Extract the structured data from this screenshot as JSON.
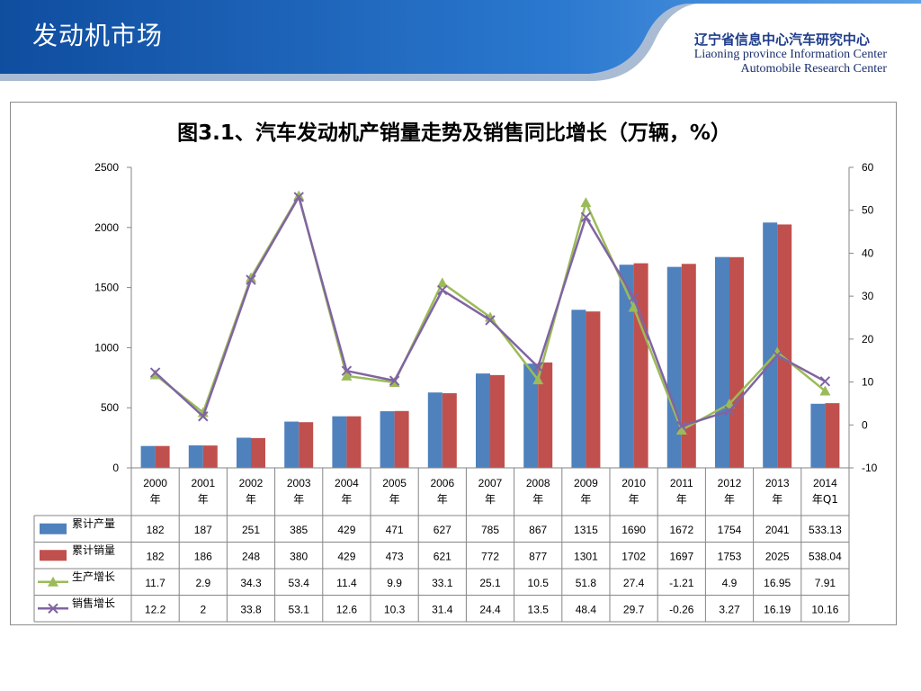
{
  "slide": {
    "title": "发动机市场",
    "org_cn": "辽宁省信息中心汽车研究中心",
    "org_en_line1": "Liaoning province Information Center",
    "org_en_line2": "Automobile Research Center"
  },
  "colors": {
    "header_blue": "#1d5fb5",
    "bar_production": "#4f81bd",
    "bar_sales": "#c0504d",
    "line_production_growth": "#9bbb59",
    "line_sales_growth": "#8064a2"
  },
  "chart_data": {
    "type": "bar",
    "title": "图3.1、汽车发动机产销量走势及销售同比增长（万辆，%）",
    "categories": [
      [
        "2000",
        "年"
      ],
      [
        "2001",
        "年"
      ],
      [
        "2002",
        "年"
      ],
      [
        "2003",
        "年"
      ],
      [
        "2004",
        "年"
      ],
      [
        "2005",
        "年"
      ],
      [
        "2006",
        "年"
      ],
      [
        "2007",
        "年"
      ],
      [
        "2008",
        "年"
      ],
      [
        "2009",
        "年"
      ],
      [
        "2010",
        "年"
      ],
      [
        "2011",
        "年"
      ],
      [
        "2012",
        "年"
      ],
      [
        "2013",
        "年"
      ],
      [
        "2014",
        "年Q1"
      ]
    ],
    "y_left": {
      "min": 0,
      "max": 2500,
      "ticks": [
        0,
        500,
        1000,
        1500,
        2000,
        2500
      ]
    },
    "y_right": {
      "min": -10,
      "max": 60,
      "ticks": [
        -10,
        0,
        10,
        20,
        30,
        40,
        50,
        60
      ]
    },
    "grid": false,
    "legend": "data-table",
    "series": [
      {
        "name": "累计产量",
        "kind": "bar",
        "axis": "left",
        "color": "#4f81bd",
        "values": [
          182,
          187,
          251,
          385,
          429,
          471,
          627,
          785,
          867,
          1315,
          1690,
          1672,
          1754,
          2041,
          533.13
        ],
        "labels": [
          "182",
          "187",
          "251",
          "385",
          "429",
          "471",
          "627",
          "785",
          "867",
          "1315",
          "1690",
          "1672",
          "1754",
          "2041",
          "533.13"
        ]
      },
      {
        "name": "累计销量",
        "kind": "bar",
        "axis": "left",
        "color": "#c0504d",
        "values": [
          182,
          186,
          248,
          380,
          429,
          473,
          621,
          772,
          877,
          1301,
          1702,
          1697,
          1753,
          2025,
          538.04
        ],
        "labels": [
          "182",
          "186",
          "248",
          "380",
          "429",
          "473",
          "621",
          "772",
          "877",
          "1301",
          "1702",
          "1697",
          "1753",
          "2025",
          "538.04"
        ]
      },
      {
        "name": "生产增长",
        "kind": "line",
        "axis": "right",
        "color": "#9bbb59",
        "marker": "triangle",
        "values": [
          11.7,
          2.9,
          34.3,
          53.4,
          11.4,
          9.9,
          33.1,
          25.1,
          10.5,
          51.8,
          27.4,
          -1.21,
          4.9,
          16.95,
          7.91
        ],
        "labels": [
          "11.7",
          "2.9",
          "34.3",
          "53.4",
          "11.4",
          "9.9",
          "33.1",
          "25.1",
          "10.5",
          "51.8",
          "27.4",
          "-1.21",
          "4.9",
          "16.95",
          "7.91"
        ]
      },
      {
        "name": "销售增长",
        "kind": "line",
        "axis": "right",
        "color": "#8064a2",
        "marker": "x",
        "values": [
          12.2,
          2,
          33.8,
          53.1,
          12.6,
          10.3,
          31.4,
          24.4,
          13.5,
          48.4,
          29.7,
          -0.26,
          3.27,
          16.19,
          10.16
        ],
        "labels": [
          "12.2",
          "2",
          "33.8",
          "53.1",
          "12.6",
          "10.3",
          "31.4",
          "24.4",
          "13.5",
          "48.4",
          "29.7",
          "-0.26",
          "3.27",
          "16.19",
          "10.16"
        ]
      }
    ]
  }
}
